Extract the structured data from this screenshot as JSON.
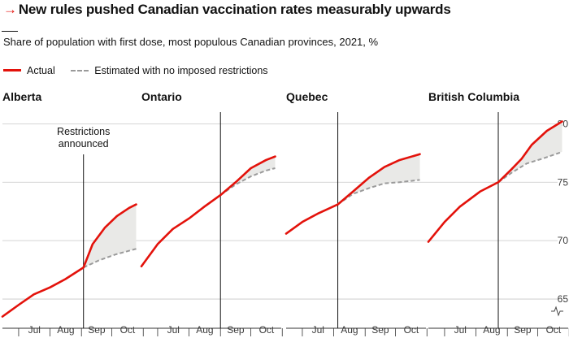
{
  "header": {
    "title": "New rules pushed Canadian vaccination rates measurably upwards",
    "subtitle": "Share of population with first dose, most populous Canadian provinces, 2021, %"
  },
  "legend": {
    "actual": "Actual",
    "estimated": "Estimated with no imposed restrictions"
  },
  "colors": {
    "actual": "#e3120b",
    "estimated": "#9a9a9a",
    "fill": "#e9e9e7",
    "grid": "#c7c7c7"
  },
  "chart_data": {
    "type": "line",
    "ylim": [
      62.5,
      81
    ],
    "yticks": [
      65,
      70,
      75,
      80
    ],
    "x_axis": {
      "month_labels": [
        "Jul",
        "Aug",
        "Sep",
        "Oct"
      ],
      "month_starts": [
        "Jul 1",
        "Aug 1",
        "Sep 1",
        "Oct 1",
        "Nov 1"
      ]
    },
    "annotation": [
      "Restrictions",
      "announced"
    ],
    "panels": [
      {
        "province": "Alberta",
        "announcement": "Sep 3",
        "actual": [
          [
            "Jun 15",
            63.5
          ],
          [
            "Jul 1",
            64.5
          ],
          [
            "Jul 16",
            65.4
          ],
          [
            "Aug 1",
            66.0
          ],
          [
            "Aug 16",
            66.7
          ],
          [
            "Sep 3",
            67.7
          ],
          [
            "Sep 12",
            69.7
          ],
          [
            "Sep 24",
            71.1
          ],
          [
            "Oct 6",
            72.1
          ],
          [
            "Oct 18",
            72.8
          ],
          [
            "Oct 25",
            73.1
          ]
        ],
        "estimated": [
          [
            "Sep 3",
            67.7
          ],
          [
            "Sep 18",
            68.3
          ],
          [
            "Oct 4",
            68.8
          ],
          [
            "Oct 25",
            69.3
          ]
        ]
      },
      {
        "province": "Ontario",
        "announcement": "Sep 1",
        "actual": [
          [
            "Jun 15",
            67.8
          ],
          [
            "Jul 1",
            69.7
          ],
          [
            "Jul 16",
            71.0
          ],
          [
            "Aug 1",
            71.9
          ],
          [
            "Aug 16",
            72.9
          ],
          [
            "Sep 1",
            73.9
          ],
          [
            "Sep 16",
            75.0
          ],
          [
            "Oct 1",
            76.2
          ],
          [
            "Oct 16",
            76.9
          ],
          [
            "Oct 25",
            77.2
          ]
        ],
        "estimated": [
          [
            "Sep 1",
            73.9
          ],
          [
            "Sep 16",
            74.8
          ],
          [
            "Oct 1",
            75.5
          ],
          [
            "Oct 16",
            76.0
          ],
          [
            "Oct 25",
            76.2
          ]
        ]
      },
      {
        "province": "Quebec",
        "announcement": "Aug 5",
        "actual": [
          [
            "Jun 15",
            70.6
          ],
          [
            "Jul 1",
            71.6
          ],
          [
            "Jul 16",
            72.3
          ],
          [
            "Aug 5",
            73.1
          ],
          [
            "Aug 20",
            74.2
          ],
          [
            "Sep 5",
            75.4
          ],
          [
            "Sep 20",
            76.3
          ],
          [
            "Oct 5",
            76.9
          ],
          [
            "Oct 25",
            77.4
          ]
        ],
        "estimated": [
          [
            "Aug 5",
            73.1
          ],
          [
            "Aug 20",
            74.0
          ],
          [
            "Sep 5",
            74.5
          ],
          [
            "Sep 20",
            74.9
          ],
          [
            "Oct 5",
            75.0
          ],
          [
            "Oct 25",
            75.2
          ]
        ]
      },
      {
        "province": "British Columbia",
        "announcement": "Aug 23",
        "actual": [
          [
            "Jun 15",
            69.9
          ],
          [
            "Jul 1",
            71.6
          ],
          [
            "Jul 16",
            72.9
          ],
          [
            "Aug 5",
            74.2
          ],
          [
            "Aug 23",
            75.0
          ],
          [
            "Sep 5",
            76.1
          ],
          [
            "Sep 15",
            77.0
          ],
          [
            "Sep 25",
            78.2
          ],
          [
            "Oct 10",
            79.4
          ],
          [
            "Oct 25",
            80.2
          ]
        ],
        "estimated": [
          [
            "Aug 23",
            75.0
          ],
          [
            "Sep 5",
            75.8
          ],
          [
            "Sep 20",
            76.6
          ],
          [
            "Oct 5",
            77.0
          ],
          [
            "Oct 25",
            77.6
          ]
        ]
      }
    ]
  }
}
